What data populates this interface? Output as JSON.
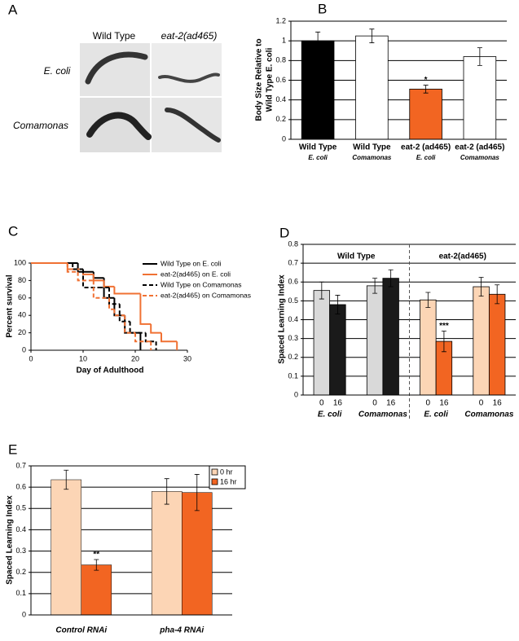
{
  "panel_a": {
    "label": "A",
    "columns": [
      "Wild Type",
      "eat-2(ad465)"
    ],
    "rows": [
      "E. coli",
      "Comamonas"
    ]
  },
  "chart_data": [
    {
      "type": "bar",
      "panel": "B",
      "ylabel": [
        "Body Size Relative to",
        "Wild Type E. coli"
      ],
      "categories": [
        "Wild Type",
        "Wild Type",
        "eat-2 (ad465)",
        "eat-2 (ad465)"
      ],
      "subcategories": [
        "E. coli",
        "Comamonas",
        "E. coli",
        "Comamonas"
      ],
      "values": [
        1.0,
        1.05,
        0.51,
        0.84
      ],
      "errors": [
        0.09,
        0.07,
        0.04,
        0.09
      ],
      "colors": [
        "#000000",
        "#ffffff",
        "#f26522",
        "#ffffff"
      ],
      "significance": [
        null,
        null,
        "*",
        null
      ],
      "ylim": [
        0,
        1.2
      ],
      "yticks": [
        0,
        0.2,
        0.4,
        0.6,
        0.8,
        1,
        1.2
      ],
      "grid": true
    },
    {
      "type": "step",
      "panel": "C",
      "ylabel": "Percent survival",
      "xlabel": "Day of  Adulthood",
      "xlim": [
        0,
        30
      ],
      "xticks": [
        0,
        10,
        20,
        30
      ],
      "ylim": [
        0,
        100
      ],
      "yticks": [
        0,
        20,
        40,
        60,
        80,
        100
      ],
      "grid": false,
      "legend": "upper right",
      "series": [
        {
          "name": "Wild Type on E. coli",
          "color": "#000000",
          "dashed": false,
          "x": [
            0,
            9,
            12,
            14,
            16,
            18,
            21
          ],
          "values": [
            100,
            90,
            83,
            60,
            40,
            20,
            0
          ]
        },
        {
          "name": "eat-2(ad465) on E. coli",
          "color": "#f07133",
          "dashed": false,
          "x": [
            0,
            7,
            10,
            12,
            14,
            16,
            21,
            23,
            25,
            28
          ],
          "values": [
            100,
            93,
            87,
            80,
            73,
            65,
            30,
            20,
            10,
            0
          ]
        },
        {
          "name": "Wild Type on Comamonas",
          "color": "#000000",
          "dashed": true,
          "x": [
            0,
            8,
            10,
            13,
            15,
            17,
            19,
            22,
            24
          ],
          "values": [
            100,
            93,
            72,
            72,
            53,
            33,
            20,
            10,
            0
          ]
        },
        {
          "name": "eat-2(ad465) on Comamonas",
          "color": "#f07133",
          "dashed": true,
          "x": [
            0,
            7,
            9,
            12,
            15,
            16,
            18,
            20,
            23
          ],
          "values": [
            100,
            90,
            80,
            60,
            47,
            40,
            20,
            10,
            0
          ]
        }
      ]
    },
    {
      "type": "bar",
      "panel": "D",
      "ylabel": "Spaced Learning Index",
      "categories": [
        "0",
        "16",
        "0",
        "16",
        "0",
        "16",
        "0",
        "16"
      ],
      "groups": [
        "E. coli",
        "Comamonas",
        "E. coli",
        "Comamonas"
      ],
      "sections": [
        "Wild Type",
        "eat-2(ad465)"
      ],
      "values": [
        0.555,
        0.48,
        0.58,
        0.62,
        0.505,
        0.285,
        0.575,
        0.535
      ],
      "errors": [
        0.045,
        0.05,
        0.04,
        0.045,
        0.04,
        0.055,
        0.05,
        0.05
      ],
      "colors": [
        "#d9d9d9",
        "#1a1a1a",
        "#d9d9d9",
        "#1a1a1a",
        "#fcd5b5",
        "#f26522",
        "#fcd5b5",
        "#f26522"
      ],
      "significance": [
        null,
        null,
        null,
        null,
        null,
        "***",
        null,
        null
      ],
      "ylim": [
        0,
        0.8
      ],
      "yticks": [
        0,
        0.1,
        0.2,
        0.3,
        0.4,
        0.5,
        0.6,
        0.7,
        0.8
      ],
      "grid": true
    },
    {
      "type": "grouped_bar",
      "panel": "E",
      "ylabel": "Spaced Learning Index",
      "categories": [
        "Control RNAi",
        "pha-4 RNAi"
      ],
      "series": [
        {
          "name": "0 hr",
          "color": "#fcd5b5",
          "values": [
            0.635,
            0.58
          ],
          "errors": [
            0.045,
            0.06
          ],
          "significance": [
            null,
            null
          ]
        },
        {
          "name": "16 hr",
          "color": "#f26522",
          "values": [
            0.235,
            0.575
          ],
          "errors": [
            0.025,
            0.085
          ],
          "significance": [
            "**",
            null
          ]
        }
      ],
      "ylim": [
        0,
        0.7
      ],
      "yticks": [
        0,
        0.1,
        0.2,
        0.3,
        0.4,
        0.5,
        0.6,
        0.7
      ],
      "grid": true,
      "legend": "upper right"
    }
  ]
}
